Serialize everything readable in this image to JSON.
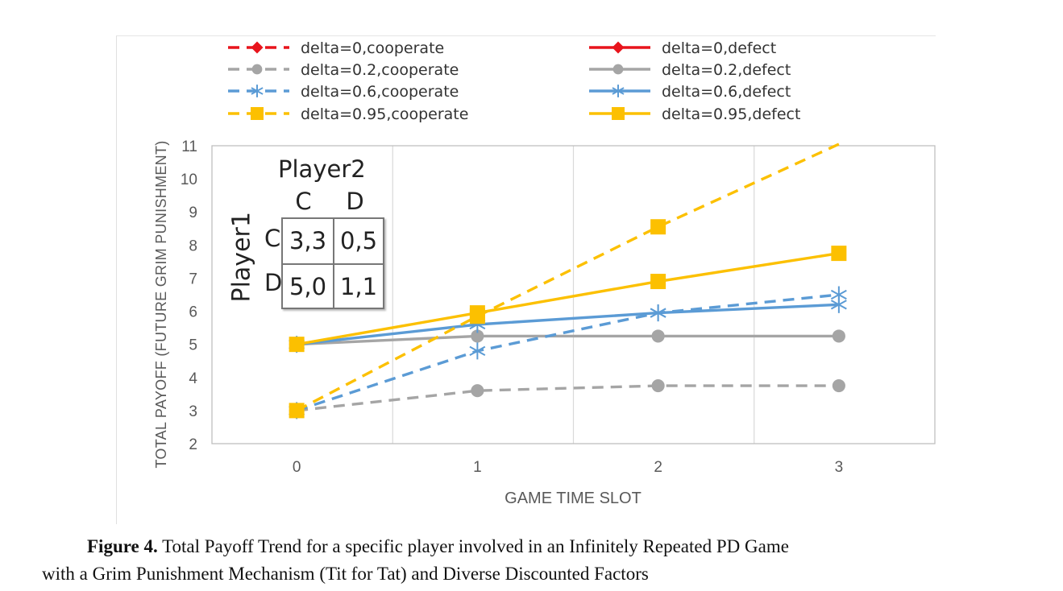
{
  "chart_data": {
    "type": "line",
    "xlabel": "GAME TIME SLOT",
    "ylabel": "TOTAL PAYOFF (FUTURE GRIM PUNISHMENT)",
    "x": [
      0,
      1,
      2,
      3
    ],
    "x_tick_labels": [
      "0",
      "1",
      "2",
      "3"
    ],
    "ylim": [
      2,
      11
    ],
    "y_tick_labels": [
      "2",
      "3",
      "4",
      "5",
      "6",
      "7",
      "8",
      "9",
      "10",
      "11"
    ],
    "grid": "vertical",
    "legend_placement": "top",
    "series": [
      {
        "name": "delta=0,cooperate",
        "color": "#e8141c",
        "dash": true,
        "marker": "diamond",
        "values": [
          3,
          null,
          null,
          null
        ]
      },
      {
        "name": "delta=0,defect",
        "color": "#e8141c",
        "dash": false,
        "marker": "diamond",
        "values": [
          5,
          null,
          null,
          null
        ]
      },
      {
        "name": "delta=0.2,cooperate",
        "color": "#a5a5a5",
        "dash": true,
        "marker": "circle",
        "values": [
          3,
          3.6,
          3.75,
          3.75
        ]
      },
      {
        "name": "delta=0.2,defect",
        "color": "#a5a5a5",
        "dash": false,
        "marker": "circle",
        "values": [
          5,
          5.25,
          5.25,
          5.25
        ]
      },
      {
        "name": "delta=0.6,cooperate",
        "color": "#5b9bd5",
        "dash": true,
        "marker": "asterisk",
        "values": [
          3,
          4.8,
          5.95,
          6.5
        ]
      },
      {
        "name": "delta=0.6,defect",
        "color": "#5b9bd5",
        "dash": false,
        "marker": "asterisk",
        "values": [
          5,
          5.6,
          5.95,
          6.2
        ]
      },
      {
        "name": "delta=0.95,cooperate",
        "color": "#fcc000",
        "dash": true,
        "marker": "square",
        "values": [
          3,
          5.85,
          8.55,
          11.1
        ]
      },
      {
        "name": "delta=0.95,defect",
        "color": "#fcc000",
        "dash": false,
        "marker": "square",
        "values": [
          5,
          5.95,
          6.9,
          7.75
        ]
      }
    ],
    "inset": {
      "title": "Player2",
      "row_label": "Player1",
      "col_labels": [
        "C",
        "D"
      ],
      "row_labels": [
        "C",
        "D"
      ],
      "cells": [
        [
          "3,3",
          "0,5"
        ],
        [
          "5,0",
          "1,1"
        ]
      ]
    }
  },
  "caption": {
    "label": "Figure 4.",
    "line1": "Total Payoff Trend for a specific player involved in an Infinitely Repeated PD Game",
    "line2": "with a Grim Punishment Mechanism (Tit for Tat) and Diverse Discounted Factors"
  }
}
